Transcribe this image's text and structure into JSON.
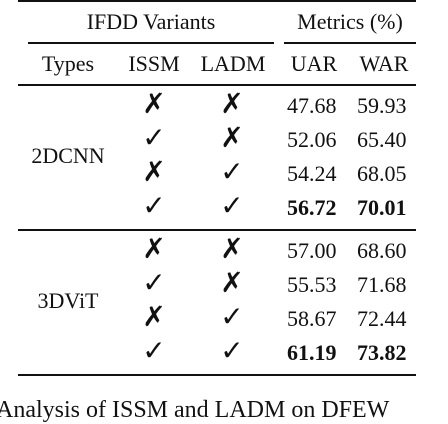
{
  "table": {
    "header_group": {
      "left": "IFDD Variants",
      "right": "Metrics (%)"
    },
    "columns": [
      "Types",
      "ISSM",
      "LADM",
      "UAR",
      "WAR"
    ],
    "check_symbol": "✓",
    "cross_symbol": "✗",
    "groups": [
      {
        "type": "2DCNN",
        "rows": [
          {
            "issm": "✗",
            "ladm": "✗",
            "uar": "47.68",
            "war": "59.93",
            "bold": false
          },
          {
            "issm": "✓",
            "ladm": "✗",
            "uar": "52.06",
            "war": "65.40",
            "bold": false
          },
          {
            "issm": "✗",
            "ladm": "✓",
            "uar": "54.24",
            "war": "68.05",
            "bold": false
          },
          {
            "issm": "✓",
            "ladm": "✓",
            "uar": "56.72",
            "war": "70.01",
            "bold": true
          }
        ]
      },
      {
        "type": "3DViT",
        "rows": [
          {
            "issm": "✗",
            "ladm": "✗",
            "uar": "57.00",
            "war": "68.60",
            "bold": false
          },
          {
            "issm": "✓",
            "ladm": "✗",
            "uar": "55.53",
            "war": "71.68",
            "bold": false
          },
          {
            "issm": "✗",
            "ladm": "✓",
            "uar": "58.67",
            "war": "72.44",
            "bold": false
          },
          {
            "issm": "✓",
            "ladm": "✓",
            "uar": "61.19",
            "war": "73.82",
            "bold": true
          }
        ]
      }
    ]
  },
  "caption": "Analysis of ISSM and LADM on DFEW"
}
